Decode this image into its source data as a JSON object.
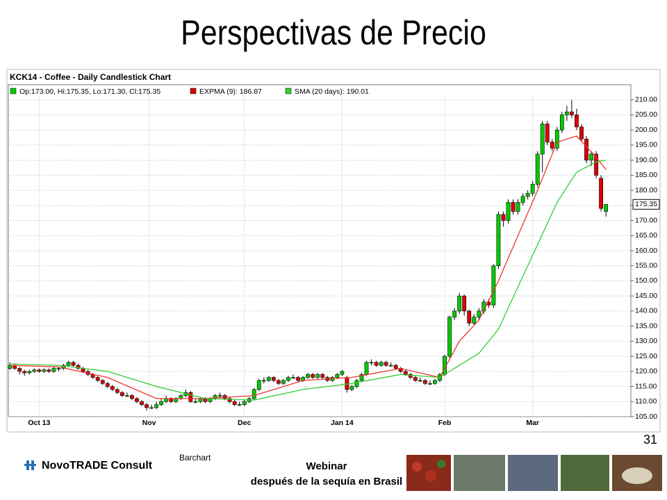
{
  "slide": {
    "title": "Perspectivas de Precio",
    "page_number": "31",
    "brand": "NovoTRADE Consult",
    "source": "Barchart",
    "footer_line1": "Webinar",
    "footer_line2": "después de la sequía en Brasil"
  },
  "chart_data": {
    "type": "candlestick",
    "title": "KCK14 - Coffee - Daily Candlestick Chart",
    "legend": [
      "Op:173.00, Hi:175.35, Lo:171.30, Cl:175.35",
      "EXPMA (9): 186.87",
      "SMA (20 days): 190.01"
    ],
    "up_color": "#00cc00",
    "down_color": "#dd0000",
    "xlim": [
      -0.3,
      127.1
    ],
    "ylim": [
      105,
      215
    ],
    "xticks": [
      {
        "value": 6,
        "label": "Oct 13"
      },
      {
        "value": 28.5,
        "label": "Nov"
      },
      {
        "value": 48,
        "label": "Dec"
      },
      {
        "value": 68,
        "label": "Jan 14"
      },
      {
        "value": 89,
        "label": "Feb"
      },
      {
        "value": 107,
        "label": "Mar"
      }
    ],
    "yticks": [
      {
        "value": 105,
        "label": "105.00"
      },
      {
        "value": 110,
        "label": "110.00"
      },
      {
        "value": 115,
        "label": "115.00"
      },
      {
        "value": 120,
        "label": "120.00"
      },
      {
        "value": 125,
        "label": "125.00"
      },
      {
        "value": 130,
        "label": "130.00"
      },
      {
        "value": 135,
        "label": "135.00"
      },
      {
        "value": 140,
        "label": "140.00"
      },
      {
        "value": 145,
        "label": "145.00"
      },
      {
        "value": 150,
        "label": "150.00"
      },
      {
        "value": 155,
        "label": "155.00"
      },
      {
        "value": 160,
        "label": "160.00"
      },
      {
        "value": 165,
        "label": "165.00"
      },
      {
        "value": 170,
        "label": "170.00"
      },
      {
        "value": 175,
        "label": "175.00"
      },
      {
        "value": 180,
        "label": "180.00"
      },
      {
        "value": 185,
        "label": "185.00"
      },
      {
        "value": 190,
        "label": "190.00"
      },
      {
        "value": 195,
        "label": "195.00"
      },
      {
        "value": 200,
        "label": "200.00"
      },
      {
        "value": 205,
        "label": "205.00"
      },
      {
        "value": 210,
        "label": "210.00"
      }
    ],
    "grid": true,
    "candles": [
      [
        121,
        123,
        120.5,
        122
      ],
      [
        122,
        122.5,
        120.5,
        121
      ],
      [
        121,
        121.5,
        119,
        120
      ],
      [
        120,
        120.5,
        118.5,
        119.5
      ],
      [
        119.5,
        120.5,
        119,
        120
      ],
      [
        120,
        121,
        119.5,
        120.5
      ],
      [
        120.5,
        121,
        119.5,
        120
      ],
      [
        120,
        121,
        119.5,
        120.5
      ],
      [
        120.5,
        121,
        119.5,
        120
      ],
      [
        120,
        121.5,
        119.5,
        121
      ],
      [
        121,
        121.5,
        120,
        121
      ],
      [
        121,
        122.5,
        120.5,
        122
      ],
      [
        122,
        123.5,
        121.5,
        123
      ],
      [
        123,
        123.5,
        121.5,
        122
      ],
      [
        122,
        122.5,
        120.5,
        121
      ],
      [
        121,
        121.5,
        119.5,
        120
      ],
      [
        120,
        120.5,
        118.5,
        119
      ],
      [
        119,
        119.5,
        117.5,
        118
      ],
      [
        118,
        118.5,
        116.5,
        117
      ],
      [
        117,
        117.5,
        115.5,
        116
      ],
      [
        116,
        116.5,
        114.5,
        115
      ],
      [
        115,
        115.5,
        113.5,
        114
      ],
      [
        114,
        114.5,
        112.5,
        113
      ],
      [
        113,
        113.5,
        111.5,
        112
      ],
      [
        112,
        113,
        111.5,
        112
      ],
      [
        112,
        112.5,
        110.5,
        111
      ],
      [
        111,
        111.5,
        109.5,
        110
      ],
      [
        110,
        110.5,
        108.5,
        109
      ],
      [
        109,
        109.5,
        107,
        108
      ],
      [
        108,
        109,
        107.5,
        108
      ],
      [
        108,
        110,
        107.5,
        109
      ],
      [
        109,
        111,
        108.5,
        110
      ],
      [
        110,
        112,
        109.5,
        111
      ],
      [
        111,
        111.5,
        109.5,
        110
      ],
      [
        110,
        111.5,
        109.5,
        111
      ],
      [
        111,
        112.5,
        110.5,
        112
      ],
      [
        112,
        114,
        111.5,
        113
      ],
      [
        113,
        113.5,
        109.5,
        110
      ],
      [
        110,
        111,
        109.5,
        110
      ],
      [
        110,
        111.5,
        109.5,
        111
      ],
      [
        111,
        111.5,
        109.5,
        110
      ],
      [
        110,
        111.5,
        109.5,
        111
      ],
      [
        111,
        112.5,
        110.5,
        112
      ],
      [
        112,
        113,
        111,
        112
      ],
      [
        112,
        112.5,
        110.5,
        111
      ],
      [
        111,
        111.5,
        109.5,
        110
      ],
      [
        110,
        110.5,
        108.5,
        109
      ],
      [
        109,
        110,
        108.5,
        109
      ],
      [
        109,
        110.5,
        108.5,
        110
      ],
      [
        110,
        111.5,
        109.5,
        111
      ],
      [
        111,
        114.5,
        110.5,
        114
      ],
      [
        114,
        117.5,
        113.5,
        117
      ],
      [
        117,
        118,
        116,
        117
      ],
      [
        117,
        118.5,
        116.5,
        118
      ],
      [
        118,
        118.5,
        116.5,
        117
      ],
      [
        117,
        117.5,
        115.5,
        116
      ],
      [
        116,
        117.5,
        115.5,
        117
      ],
      [
        117,
        118.5,
        116.5,
        118
      ],
      [
        118,
        119,
        117.5,
        118
      ],
      [
        118,
        118.5,
        116.5,
        117
      ],
      [
        117,
        118.5,
        116.5,
        118
      ],
      [
        118,
        119.5,
        117.5,
        119
      ],
      [
        119,
        119.5,
        117.5,
        118
      ],
      [
        118,
        119.5,
        117.5,
        119
      ],
      [
        119,
        119.5,
        117.5,
        118
      ],
      [
        118,
        118.5,
        116.5,
        117
      ],
      [
        117,
        118.5,
        116.5,
        118
      ],
      [
        118,
        119.5,
        117.5,
        119
      ],
      [
        119,
        120.5,
        118.5,
        120
      ],
      [
        118,
        118.5,
        113,
        114
      ],
      [
        114,
        115.5,
        113.5,
        115
      ],
      [
        115,
        117.5,
        114.5,
        117
      ],
      [
        117,
        119.5,
        116.5,
        119
      ],
      [
        119,
        123.5,
        118.5,
        123
      ],
      [
        123,
        124,
        122,
        123
      ],
      [
        123,
        123.5,
        121.5,
        122
      ],
      [
        122,
        123.5,
        121.5,
        123
      ],
      [
        123,
        123.5,
        121.5,
        122
      ],
      [
        122,
        123,
        121.5,
        122
      ],
      [
        122,
        122.5,
        120.5,
        121
      ],
      [
        121,
        121.5,
        119.5,
        120
      ],
      [
        120,
        120.5,
        118.5,
        119
      ],
      [
        119,
        119.5,
        117.5,
        118
      ],
      [
        118,
        118.5,
        116.5,
        117
      ],
      [
        117,
        118,
        116.5,
        117
      ],
      [
        117,
        117.5,
        115.5,
        116
      ],
      [
        116,
        117,
        115.5,
        116
      ],
      [
        116,
        117.5,
        115.5,
        117
      ],
      [
        117,
        119.5,
        116.5,
        119
      ],
      [
        119,
        125.5,
        118.5,
        125
      ],
      [
        125,
        138.5,
        124.5,
        138
      ],
      [
        138,
        141,
        137,
        140
      ],
      [
        140,
        146,
        139,
        145
      ],
      [
        145,
        145.5,
        138.5,
        140
      ],
      [
        140,
        140.5,
        135,
        136
      ],
      [
        136,
        139,
        135.5,
        138
      ],
      [
        138,
        141,
        137,
        140
      ],
      [
        140,
        144,
        139,
        143
      ],
      [
        143,
        144,
        141,
        142
      ],
      [
        142,
        155.5,
        141,
        155
      ],
      [
        155,
        173,
        154,
        172
      ],
      [
        172,
        173,
        168,
        170
      ],
      [
        170,
        177,
        169,
        176
      ],
      [
        176,
        177,
        172,
        173
      ],
      [
        173,
        177,
        172,
        176
      ],
      [
        176,
        179,
        175,
        178
      ],
      [
        178,
        180,
        177,
        179
      ],
      [
        179,
        183,
        178,
        182
      ],
      [
        182,
        193,
        181,
        192
      ],
      [
        192,
        203,
        186,
        202
      ],
      [
        202,
        203,
        195,
        196
      ],
      [
        196,
        197,
        193,
        194
      ],
      [
        194,
        201,
        193,
        200
      ],
      [
        200,
        206,
        199,
        205
      ],
      [
        205,
        208,
        203,
        206
      ],
      [
        206,
        210,
        204,
        205
      ],
      [
        205,
        207,
        200,
        201
      ],
      [
        201,
        202,
        196,
        197
      ],
      [
        197,
        198,
        189,
        190
      ],
      [
        190,
        193,
        188,
        192
      ],
      [
        192,
        193,
        184,
        185
      ],
      [
        184,
        185,
        173,
        174
      ],
      [
        173,
        175.35,
        171.3,
        175.35
      ]
    ],
    "series": [
      {
        "name": "EXPMA (9)",
        "color": "#ee3333",
        "x": [
          0,
          10,
          20,
          30,
          40,
          50,
          60,
          70,
          80,
          88,
          92,
          96,
          100,
          104,
          108,
          112,
          116,
          120,
          122
        ],
        "values": [
          122,
          121.5,
          118,
          111,
          111,
          112,
          117,
          118,
          121,
          118,
          130,
          137,
          150,
          165,
          180,
          196,
          198,
          191,
          186.87
        ]
      },
      {
        "name": "SMA (20 days)",
        "color": "#33cc33",
        "x": [
          0,
          10,
          20,
          30,
          40,
          50,
          60,
          70,
          80,
          88,
          92,
          96,
          100,
          104,
          108,
          112,
          116,
          120,
          122
        ],
        "values": [
          122.5,
          122,
          120,
          115,
          111,
          110.5,
          114,
          116,
          119,
          118,
          122,
          126,
          134,
          148,
          162,
          176,
          186,
          189.5,
          190.01
        ]
      }
    ]
  }
}
